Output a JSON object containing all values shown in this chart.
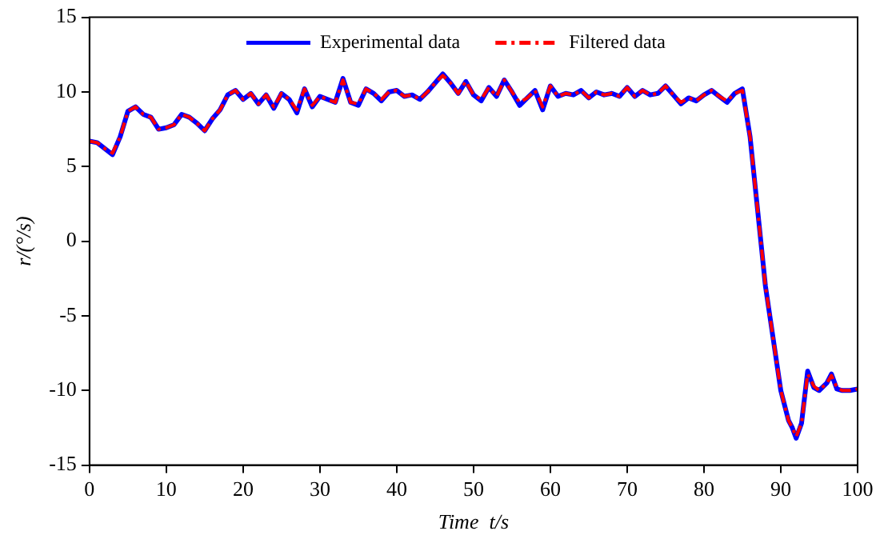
{
  "chart_data": {
    "type": "line",
    "xlabel": "Time  t/s",
    "ylabel": "r/(°/s)",
    "xlim": [
      0,
      100
    ],
    "ylim": [
      -15,
      15
    ],
    "xticks": [
      0,
      10,
      20,
      30,
      40,
      50,
      60,
      70,
      80,
      90,
      100
    ],
    "yticks": [
      -15,
      -10,
      -5,
      0,
      5,
      10,
      15
    ],
    "grid": false,
    "legend": "top",
    "marker": "none",
    "x": [
      0,
      1,
      2,
      3,
      4,
      5,
      6,
      7,
      8,
      9,
      10,
      11,
      12,
      13,
      14,
      15,
      16,
      17,
      18,
      19,
      20,
      21,
      22,
      23,
      24,
      25,
      26,
      27,
      28,
      29,
      30,
      31,
      32,
      33,
      34,
      35,
      36,
      37,
      38,
      39,
      40,
      41,
      42,
      43,
      44,
      45,
      46,
      47,
      48,
      49,
      50,
      51,
      52,
      53,
      54,
      55,
      56,
      57,
      58,
      59,
      60,
      61,
      62,
      63,
      64,
      65,
      66,
      67,
      68,
      69,
      70,
      71,
      72,
      73,
      74,
      75,
      76,
      77,
      78,
      79,
      80,
      81,
      82,
      83,
      84,
      85,
      86,
      87,
      88,
      89,
      90,
      91,
      91.5,
      92,
      92.7,
      93.5,
      94.3,
      95,
      96,
      96.6,
      97.3,
      98,
      99,
      100
    ],
    "series": [
      {
        "name": "Experimental data",
        "color": "#0000ff",
        "line_style": "solid",
        "values": [
          6.7,
          6.6,
          6.2,
          5.8,
          7.0,
          8.7,
          9.0,
          8.5,
          8.3,
          7.5,
          7.6,
          7.8,
          8.5,
          8.3,
          7.9,
          7.4,
          8.2,
          8.8,
          9.8,
          10.1,
          9.5,
          9.9,
          9.2,
          9.8,
          8.9,
          9.9,
          9.5,
          8.6,
          10.2,
          9.0,
          9.7,
          9.5,
          9.3,
          10.9,
          9.3,
          9.1,
          10.2,
          9.9,
          9.4,
          10.0,
          10.1,
          9.7,
          9.8,
          9.5,
          10.0,
          10.6,
          11.2,
          10.6,
          9.9,
          10.7,
          9.8,
          9.4,
          10.3,
          9.7,
          10.8,
          10.0,
          9.1,
          9.6,
          10.1,
          8.8,
          10.4,
          9.7,
          9.9,
          9.8,
          10.1,
          9.6,
          10.0,
          9.8,
          9.9,
          9.7,
          10.3,
          9.7,
          10.1,
          9.8,
          9.9,
          10.4,
          9.8,
          9.2,
          9.6,
          9.4,
          9.8,
          10.1,
          9.7,
          9.3,
          9.9,
          10.2,
          7.0,
          2.0,
          -3.0,
          -6.5,
          -10.0,
          -12.0,
          -12.5,
          -13.2,
          -12.2,
          -8.7,
          -9.8,
          -10.0,
          -9.5,
          -8.9,
          -9.9,
          -10.0,
          -10.0,
          -9.9
        ]
      },
      {
        "name": "Filtered data",
        "color": "#ff0000",
        "line_style": "dashed",
        "values": [
          6.7,
          6.6,
          6.2,
          5.9,
          7.0,
          8.7,
          9.0,
          8.5,
          8.3,
          7.5,
          7.6,
          7.8,
          8.5,
          8.3,
          7.9,
          7.4,
          8.2,
          8.8,
          9.8,
          10.1,
          9.5,
          9.9,
          9.2,
          9.8,
          9.0,
          9.9,
          9.5,
          8.8,
          10.2,
          9.1,
          9.7,
          9.5,
          9.3,
          10.8,
          9.3,
          9.2,
          10.2,
          9.9,
          9.5,
          10.0,
          10.1,
          9.7,
          9.8,
          9.5,
          10.0,
          10.6,
          11.1,
          10.6,
          9.9,
          10.7,
          9.8,
          9.5,
          10.3,
          9.7,
          10.8,
          10.0,
          9.3,
          9.6,
          10.1,
          9.0,
          10.4,
          9.7,
          9.9,
          9.8,
          10.1,
          9.6,
          10.0,
          9.8,
          9.9,
          9.7,
          10.3,
          9.7,
          10.1,
          9.8,
          9.9,
          10.4,
          9.8,
          9.3,
          9.6,
          9.4,
          9.8,
          10.1,
          9.7,
          9.4,
          9.9,
          10.1,
          7.0,
          2.0,
          -3.0,
          -6.5,
          -10.0,
          -12.0,
          -12.5,
          -13.1,
          -12.2,
          -8.9,
          -9.7,
          -10.0,
          -9.5,
          -9.0,
          -9.8,
          -10.0,
          -10.0,
          -9.9
        ]
      }
    ]
  }
}
